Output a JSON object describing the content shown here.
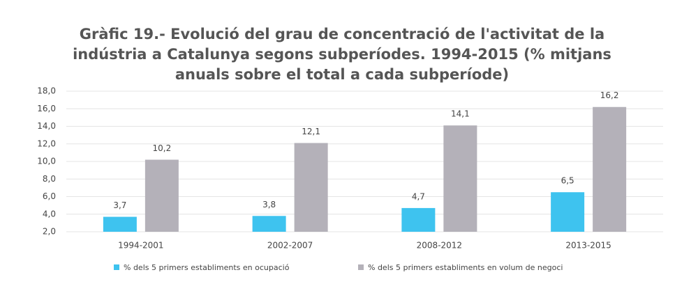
{
  "chart_data": {
    "type": "bar",
    "title": [
      "Gràfic 19.- Evolució del grau de concentració de l'activitat de la",
      "indústria a Catalunya segons subperíodes. 1994-2015 (% mitjans",
      "anuals sobre el total a cada subperíode)"
    ],
    "categories": [
      "1994-2001",
      "2002-2007",
      "2008-2012",
      "2013-2015"
    ],
    "series": [
      {
        "name": "% dels 5 primers establiments en ocupació",
        "color": "#3ec3ef",
        "values": [
          3.7,
          3.8,
          4.7,
          6.5
        ],
        "value_labels": [
          "3,7",
          "3,8",
          "4,7",
          "6,5"
        ]
      },
      {
        "name": "% dels 5 primers establiments en volum de negoci",
        "color": "#b4b1b9",
        "values": [
          10.2,
          12.1,
          14.1,
          16.2
        ],
        "value_labels": [
          "10,2",
          "12,1",
          "14,1",
          "16,2"
        ]
      }
    ],
    "ylim": [
      2,
      18
    ],
    "yticks": [
      {
        "value": 2,
        "label": "2,0"
      },
      {
        "value": 4,
        "label": "4,0"
      },
      {
        "value": 6,
        "label": "6,0"
      },
      {
        "value": 8,
        "label": "8,0"
      },
      {
        "value": 10,
        "label": "10,0"
      },
      {
        "value": 12,
        "label": "12,0"
      },
      {
        "value": 14,
        "label": "14,0"
      },
      {
        "value": 16,
        "label": "16,0"
      },
      {
        "value": 18,
        "label": "18,0"
      }
    ],
    "grid": true,
    "legend": "bottom"
  }
}
